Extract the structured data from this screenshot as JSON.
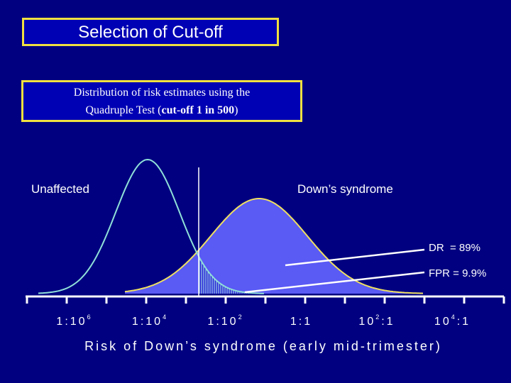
{
  "title": "Selection of Cut-off",
  "subtitle": {
    "line1": "Distribution of risk estimates using the",
    "line2_prefix": "Quadruple Test (",
    "line2_bold": "cut-off 1 in 500",
    "line2_suffix": ")"
  },
  "chart_data": {
    "type": "area",
    "series": [
      {
        "name": "Unaffected",
        "color": "#90e0d8"
      },
      {
        "name": "Down’s syndrome",
        "color": "#f0e060",
        "fill": "#5a5af5"
      }
    ],
    "xlabel": "Risk of Down’s syndrome (early mid-trimester)",
    "x_ticks": [
      {
        "base": "1:10",
        "exp": "6"
      },
      {
        "base": "1:10",
        "exp": "4"
      },
      {
        "base": "1:10",
        "exp": "2"
      },
      {
        "base": "1:1",
        "exp": ""
      },
      {
        "base": "10",
        "exp": "2",
        "suffix": ":1"
      },
      {
        "base": "10",
        "exp": "4",
        "suffix": ":1"
      }
    ],
    "cutoff": "1 in 500",
    "annotations": [
      {
        "id": "dr",
        "text": "DR  = 89%"
      },
      {
        "id": "fpr",
        "text": "FPR = 9.9%"
      }
    ]
  }
}
